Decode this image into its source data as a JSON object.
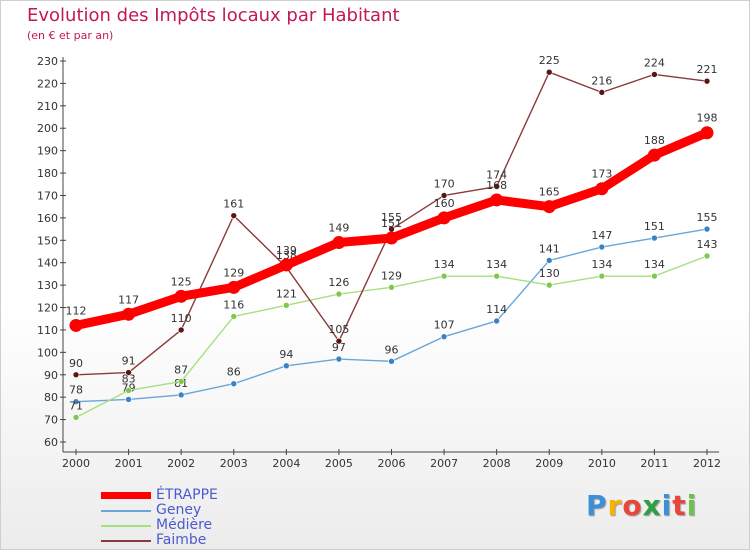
{
  "header": {
    "title": "Evolution des Impôts locaux par Habitant",
    "subtitle": "(en € et par an)"
  },
  "brand": {
    "letters": [
      "P",
      "r",
      "o",
      "x",
      "i",
      "t",
      "i"
    ],
    "colors": [
      "#3d8fd8",
      "#f4b400",
      "#e8453c",
      "#2f9e44",
      "#3d8fd8",
      "#e8453c",
      "#6cc24a"
    ]
  },
  "chart_data": {
    "type": "line",
    "title": "Evolution des Impôts locaux par Habitant",
    "subtitle": "(en € et par an)",
    "xlabel": "",
    "ylabel": "",
    "categories": [
      "2000",
      "2001",
      "2002",
      "2003",
      "2004",
      "2005",
      "2006",
      "2007",
      "2008",
      "2009",
      "2010",
      "2011",
      "2012"
    ],
    "ylim": [
      60,
      230
    ],
    "yticks": [
      60,
      70,
      80,
      90,
      100,
      110,
      120,
      130,
      140,
      150,
      160,
      170,
      180,
      190,
      200,
      210,
      220,
      230
    ],
    "grid": false,
    "legend_position": "bottom-left",
    "series": [
      {
        "name": "ÉTRAPPE",
        "color": "#ff0000",
        "emphasis": true,
        "values": [
          112,
          117,
          125,
          129,
          139,
          149,
          151,
          160,
          168,
          165,
          173,
          188,
          198
        ]
      },
      {
        "name": "Geney",
        "color": "#6aa7d8",
        "marker": "#3b82c4",
        "values": [
          78,
          79,
          81,
          86,
          94,
          97,
          96,
          107,
          114,
          141,
          147,
          151,
          155
        ]
      },
      {
        "name": "Médière",
        "color": "#a6e07a",
        "marker": "#7ec850",
        "values": [
          71,
          83,
          87,
          116,
          121,
          126,
          129,
          134,
          134,
          130,
          134,
          134,
          143
        ]
      },
      {
        "name": "Faimbe",
        "color": "#8b3a3a",
        "marker": "#5a1414",
        "values": [
          90,
          91,
          110,
          161,
          138,
          105,
          155,
          170,
          174,
          225,
          216,
          224,
          221
        ]
      }
    ]
  }
}
